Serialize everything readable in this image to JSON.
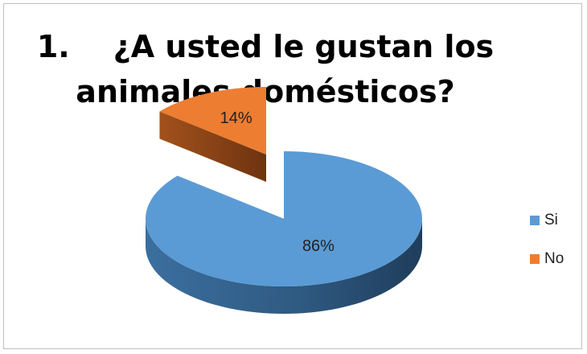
{
  "chart_data": {
    "type": "pie",
    "title_number": "1.",
    "title_line1": "¿A usted le gustan los",
    "title_line2": "animales domésticos?",
    "categories": [
      "Si",
      "No"
    ],
    "values": [
      86,
      14
    ],
    "labels": [
      "86%",
      "14%"
    ],
    "colors": [
      "#5b9bd5",
      "#ed7d31"
    ],
    "legend_position": "right",
    "style": "3d-exploded"
  }
}
